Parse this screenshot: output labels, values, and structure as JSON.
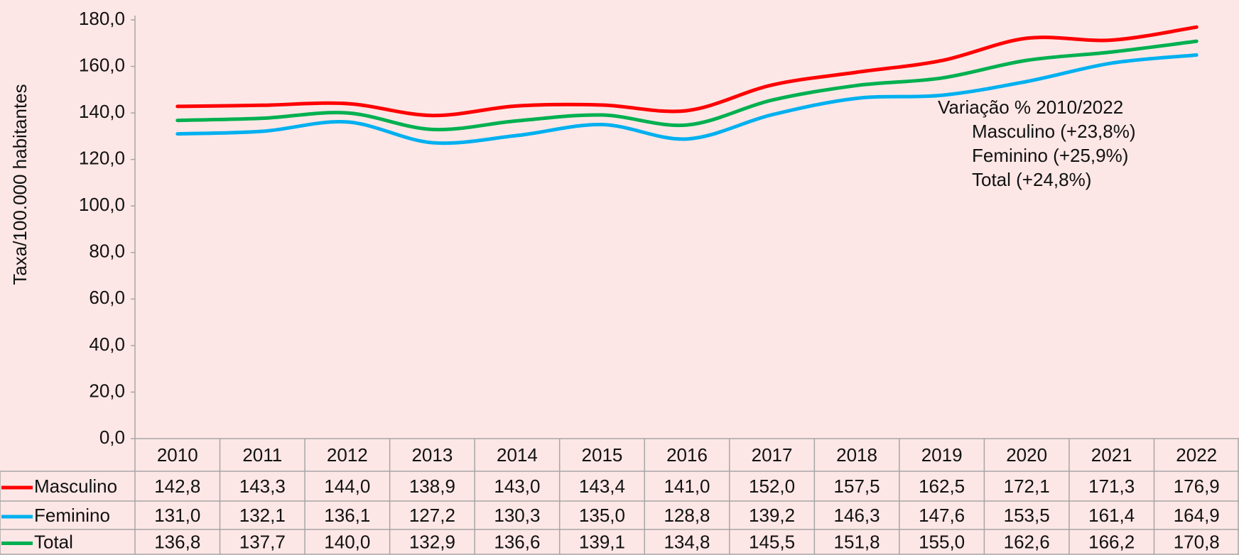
{
  "chart_data": {
    "type": "line",
    "y_label": "Taxa/100.000 habitantes",
    "categories": [
      "2010",
      "2011",
      "2012",
      "2013",
      "2014",
      "2015",
      "2016",
      "2017",
      "2018",
      "2019",
      "2020",
      "2021",
      "2022"
    ],
    "series": [
      {
        "name": "Masculino",
        "color": "#ff0000",
        "values": [
          142.8,
          143.3,
          144.0,
          138.9,
          143.0,
          143.4,
          141.0,
          152.0,
          157.5,
          162.5,
          172.1,
          171.3,
          176.9
        ],
        "value_labels": [
          "142,8",
          "143,3",
          "144,0",
          "138,9",
          "143,0",
          "143,4",
          "141,0",
          "152,0",
          "157,5",
          "162,5",
          "172,1",
          "171,3",
          "176,9"
        ]
      },
      {
        "name": "Feminino",
        "color": "#00b0f0",
        "values": [
          131.0,
          132.1,
          136.1,
          127.2,
          130.3,
          135.0,
          128.8,
          139.2,
          146.3,
          147.6,
          153.5,
          161.4,
          164.9
        ],
        "value_labels": [
          "131,0",
          "132,1",
          "136,1",
          "127,2",
          "130,3",
          "135,0",
          "128,8",
          "139,2",
          "146,3",
          "147,6",
          "153,5",
          "161,4",
          "164,9"
        ]
      },
      {
        "name": "Total",
        "color": "#00b050",
        "values": [
          136.8,
          137.7,
          140.0,
          132.9,
          136.6,
          139.1,
          134.8,
          145.5,
          151.8,
          155.0,
          162.6,
          166.2,
          170.8
        ],
        "value_labels": [
          "136,8",
          "137,7",
          "140,0",
          "132,9",
          "136,6",
          "139,1",
          "134,8",
          "145,5",
          "151,8",
          "155,0",
          "162,6",
          "166,2",
          "170,8"
        ]
      }
    ],
    "ylim": [
      0,
      180
    ],
    "yticks": [
      {
        "value": 0,
        "label": "0,0"
      },
      {
        "value": 20,
        "label": "20,0"
      },
      {
        "value": 40,
        "label": "40,0"
      },
      {
        "value": 60,
        "label": "60,0"
      },
      {
        "value": 80,
        "label": "80,0"
      },
      {
        "value": 100,
        "label": "100,0"
      },
      {
        "value": 120,
        "label": "120,0"
      },
      {
        "value": 140,
        "label": "140,0"
      },
      {
        "value": 160,
        "label": "160,0"
      },
      {
        "value": 180,
        "label": "180,0"
      }
    ],
    "grid": false,
    "annotations": [
      "Variação % 2010/2022",
      "Masculino (+23,8%)",
      "Feminino (+25,9%)",
      "Total (+24,8%)"
    ]
  }
}
